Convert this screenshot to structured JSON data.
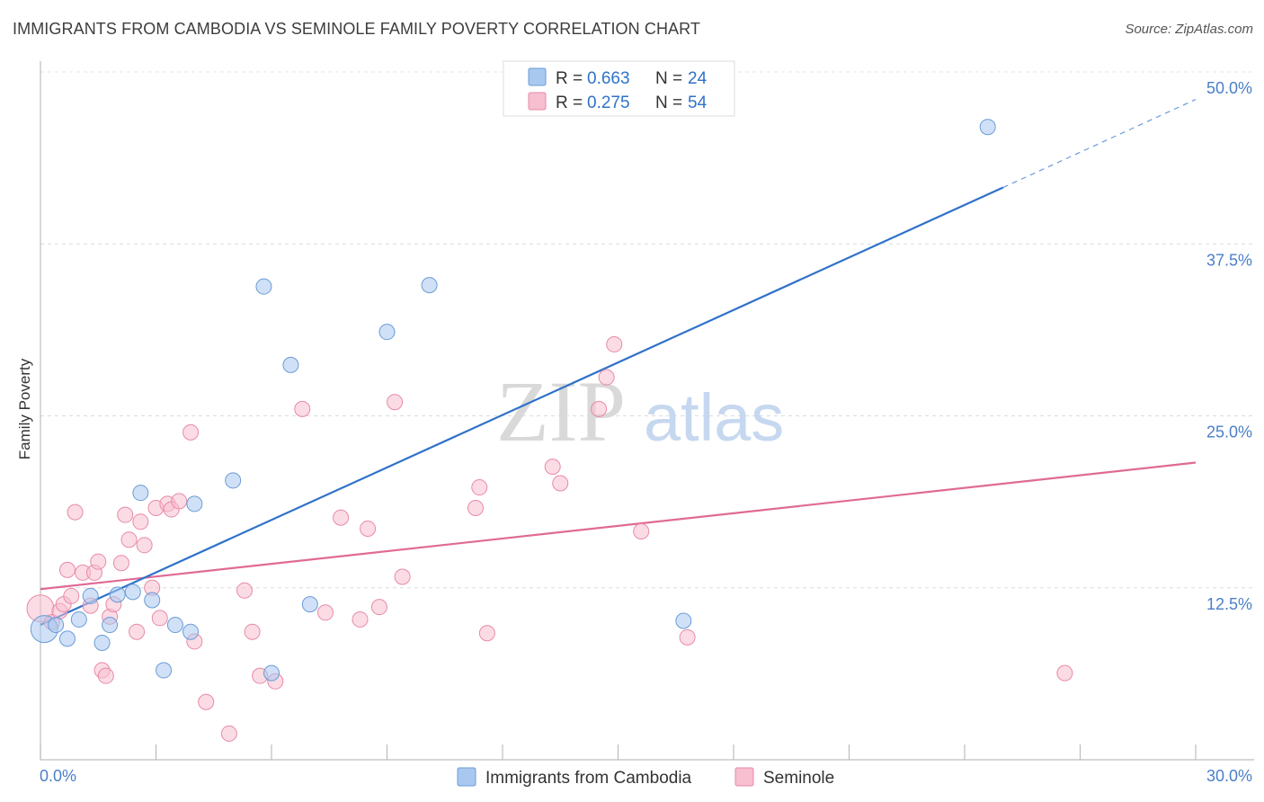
{
  "title": "IMMIGRANTS FROM CAMBODIA VS SEMINOLE FAMILY POVERTY CORRELATION CHART",
  "source": "Source: ZipAtlas.com",
  "watermark": {
    "zip": "ZIP",
    "atlas": "atlas"
  },
  "chart_data": {
    "type": "scatter",
    "title": "IMMIGRANTS FROM CAMBODIA VS SEMINOLE FAMILY POVERTY CORRELATION CHART",
    "xlabel": "",
    "ylabel": "Family Poverty",
    "xlim": [
      0,
      30
    ],
    "ylim": [
      0,
      50
    ],
    "y_ticks": [
      12.5,
      25.0,
      37.5,
      50.0
    ],
    "y_tick_labels": [
      "12.5%",
      "25.0%",
      "37.5%",
      "50.0%"
    ],
    "x_tick_labels": {
      "min": "0.0%",
      "max": "30.0%"
    },
    "legend_position": "top-center",
    "stats": [
      {
        "r_label": "R =",
        "r_value": "0.663",
        "n_label": "N =",
        "n_value": "24"
      },
      {
        "r_label": "R =",
        "r_value": "0.275",
        "n_label": "N =",
        "n_value": "54"
      }
    ],
    "series": [
      {
        "name": "Immigrants from Cambodia",
        "color": "#a9c8f0",
        "stroke": "#6a9bd6",
        "line_color": "#2f72c9",
        "points": [
          [
            0.1,
            9.5
          ],
          [
            0.4,
            9.8
          ],
          [
            0.7,
            8.8
          ],
          [
            1.0,
            10.2
          ],
          [
            1.3,
            11.9
          ],
          [
            1.6,
            8.5
          ],
          [
            1.8,
            9.8
          ],
          [
            2.0,
            12.0
          ],
          [
            2.4,
            12.2
          ],
          [
            2.6,
            19.4
          ],
          [
            2.9,
            11.6
          ],
          [
            3.2,
            6.5
          ],
          [
            3.5,
            9.8
          ],
          [
            3.9,
            9.3
          ],
          [
            4.0,
            18.6
          ],
          [
            5.0,
            20.3
          ],
          [
            5.8,
            34.4
          ],
          [
            6.0,
            6.3
          ],
          [
            6.5,
            28.7
          ],
          [
            7.0,
            11.3
          ],
          [
            9.0,
            31.1
          ],
          [
            10.1,
            34.5
          ],
          [
            16.7,
            10.1
          ],
          [
            24.6,
            46.0
          ]
        ],
        "trend": {
          "x_start": 0.0,
          "y_start": 9.8,
          "x_solid_end": 25.0,
          "y_solid_end": 41.6,
          "x_dash_end": 30.0,
          "y_dash_end": 48.0
        }
      },
      {
        "name": "Seminole",
        "color": "#f7bfd0",
        "stroke": "#e88aa8",
        "line_color": "#e06a95",
        "points": [
          [
            0.0,
            11.0
          ],
          [
            0.3,
            10.0
          ],
          [
            0.5,
            10.8
          ],
          [
            0.6,
            11.3
          ],
          [
            0.7,
            13.8
          ],
          [
            0.8,
            11.9
          ],
          [
            0.9,
            18.0
          ],
          [
            1.1,
            13.6
          ],
          [
            1.3,
            11.2
          ],
          [
            1.4,
            13.6
          ],
          [
            1.5,
            14.4
          ],
          [
            1.6,
            6.5
          ],
          [
            1.7,
            6.1
          ],
          [
            1.8,
            10.4
          ],
          [
            1.9,
            11.3
          ],
          [
            2.1,
            14.3
          ],
          [
            2.2,
            17.8
          ],
          [
            2.3,
            16.0
          ],
          [
            2.5,
            9.3
          ],
          [
            2.6,
            17.3
          ],
          [
            2.7,
            15.6
          ],
          [
            2.9,
            12.5
          ],
          [
            3.0,
            18.3
          ],
          [
            3.1,
            10.3
          ],
          [
            3.3,
            18.6
          ],
          [
            3.4,
            18.2
          ],
          [
            3.6,
            18.8
          ],
          [
            3.9,
            23.8
          ],
          [
            4.0,
            8.6
          ],
          [
            4.3,
            4.2
          ],
          [
            4.9,
            1.9
          ],
          [
            5.3,
            12.3
          ],
          [
            5.5,
            9.3
          ],
          [
            5.7,
            6.1
          ],
          [
            6.1,
            5.7
          ],
          [
            6.8,
            25.5
          ],
          [
            7.4,
            10.7
          ],
          [
            7.8,
            17.6
          ],
          [
            8.3,
            10.2
          ],
          [
            8.5,
            16.8
          ],
          [
            8.8,
            11.1
          ],
          [
            9.2,
            26.0
          ],
          [
            9.4,
            13.3
          ],
          [
            11.3,
            18.3
          ],
          [
            11.4,
            19.8
          ],
          [
            11.6,
            9.2
          ],
          [
            13.3,
            21.3
          ],
          [
            13.5,
            20.1
          ],
          [
            14.5,
            25.5
          ],
          [
            14.7,
            27.8
          ],
          [
            14.9,
            30.2
          ],
          [
            15.6,
            16.6
          ],
          [
            16.8,
            8.9
          ],
          [
            26.6,
            6.3
          ]
        ],
        "trend": {
          "x_start": 0.0,
          "y_start": 12.4,
          "x_end": 30.0,
          "y_end": 21.6
        }
      }
    ]
  }
}
